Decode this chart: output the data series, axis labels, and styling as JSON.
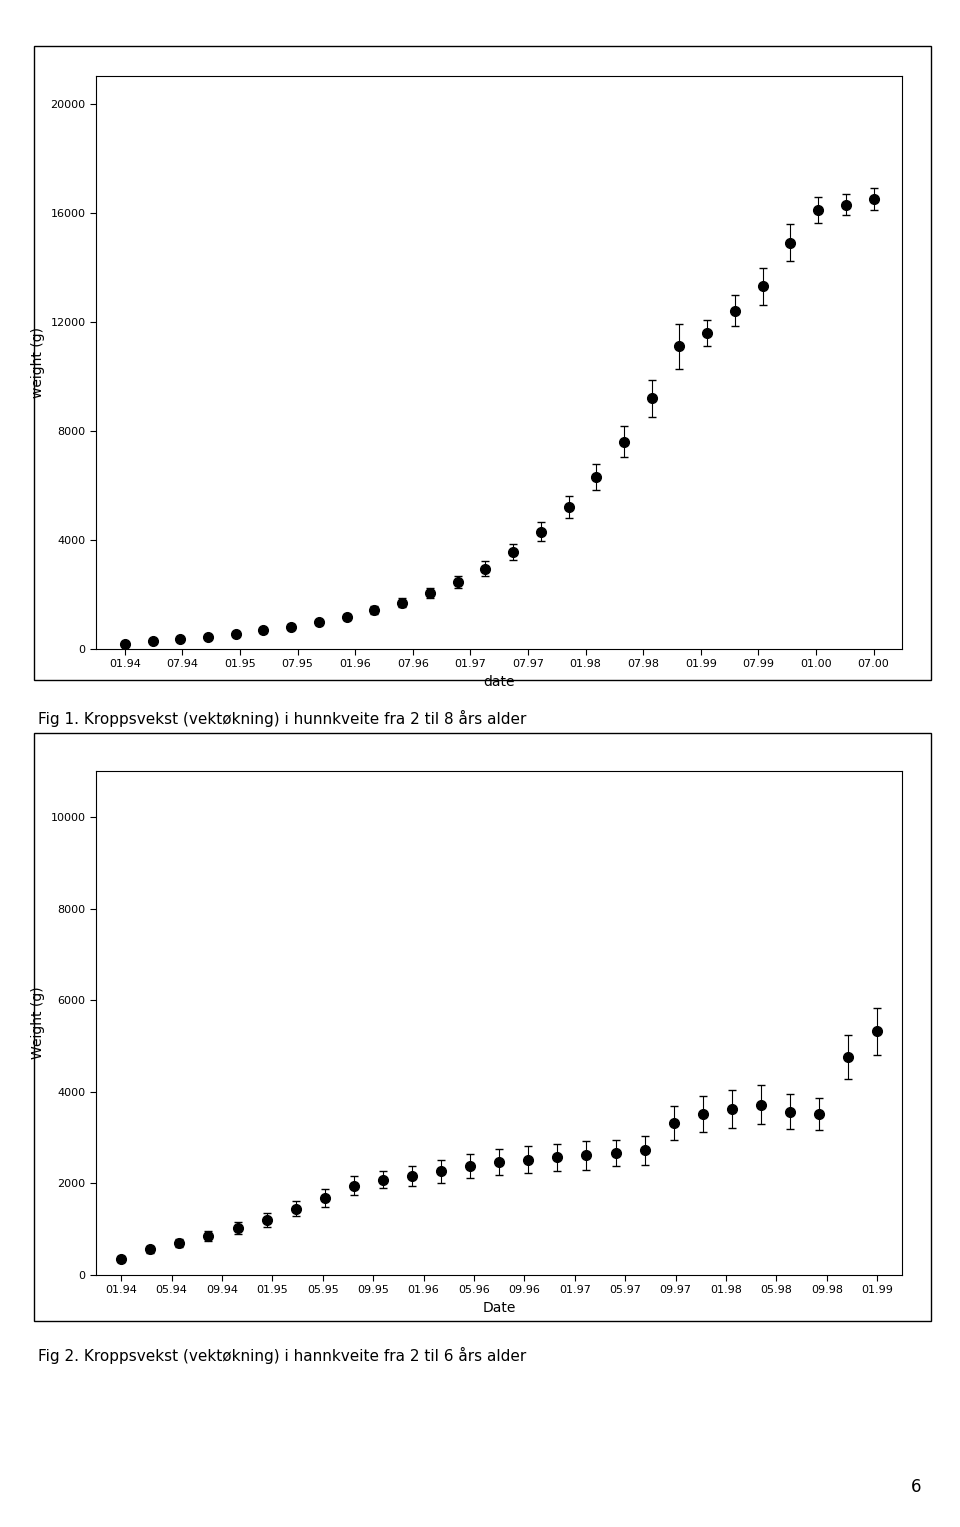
{
  "fig1": {
    "ylabel": "weight (g)",
    "xlabel": "date",
    "ylim": [
      0,
      21000
    ],
    "yticks": [
      0,
      4000,
      8000,
      12000,
      16000,
      20000
    ],
    "x_labels": [
      "01.94",
      "07.94",
      "01.95",
      "07.95",
      "01.96",
      "07.96",
      "01.97",
      "07.97",
      "01.98",
      "07.98",
      "01.99",
      "07.99",
      "01.00",
      "07.00"
    ],
    "y_values": [
      200,
      280,
      350,
      450,
      560,
      680,
      820,
      980,
      1180,
      1420,
      1700,
      2050,
      2450,
      2950,
      3550,
      4300,
      5200,
      6300,
      7600,
      9200,
      11100,
      11600,
      12400,
      13300,
      14900,
      16100,
      16300,
      16500
    ],
    "y_err": [
      30,
      40,
      50,
      60,
      70,
      80,
      90,
      100,
      120,
      140,
      160,
      190,
      220,
      260,
      300,
      350,
      410,
      480,
      560,
      680,
      820,
      480,
      570,
      670,
      680,
      490,
      390,
      390
    ],
    "caption": "Fig 1. Kroppsvekst (vektøkning) i hunnkveite fra 2 til 8 års alder"
  },
  "fig2": {
    "ylabel": "Weight (g)",
    "xlabel": "Date",
    "ylim": [
      0,
      11000
    ],
    "yticks": [
      0,
      2000,
      4000,
      6000,
      8000,
      10000
    ],
    "x_labels": [
      "01.94",
      "05.94",
      "09.94",
      "01.95",
      "05.95",
      "09.95",
      "01.96",
      "05.96",
      "09.96",
      "01.97",
      "05.97",
      "09.97",
      "01.98",
      "05.98",
      "09.98",
      "01.99"
    ],
    "y_values": [
      350,
      560,
      700,
      850,
      1020,
      1200,
      1450,
      1680,
      1950,
      2080,
      2170,
      2270,
      2380,
      2470,
      2520,
      2570,
      2610,
      2660,
      2720,
      3320,
      3520,
      3620,
      3720,
      3570,
      3510,
      4760,
      5320
    ],
    "y_err": [
      60,
      80,
      90,
      110,
      130,
      150,
      170,
      190,
      210,
      190,
      220,
      250,
      270,
      280,
      290,
      300,
      310,
      290,
      310,
      370,
      390,
      410,
      430,
      390,
      350,
      470,
      510
    ],
    "caption": "Fig 2. Kroppsvekst (vektøkning) i hannkveite fra 2 til 6 års alder"
  },
  "page_number": "6",
  "background_color": "#ffffff",
  "marker_color": "#000000",
  "marker_size": 7,
  "capsize": 3,
  "fontsize_label": 10,
  "fontsize_tick": 8,
  "fontsize_caption": 11
}
